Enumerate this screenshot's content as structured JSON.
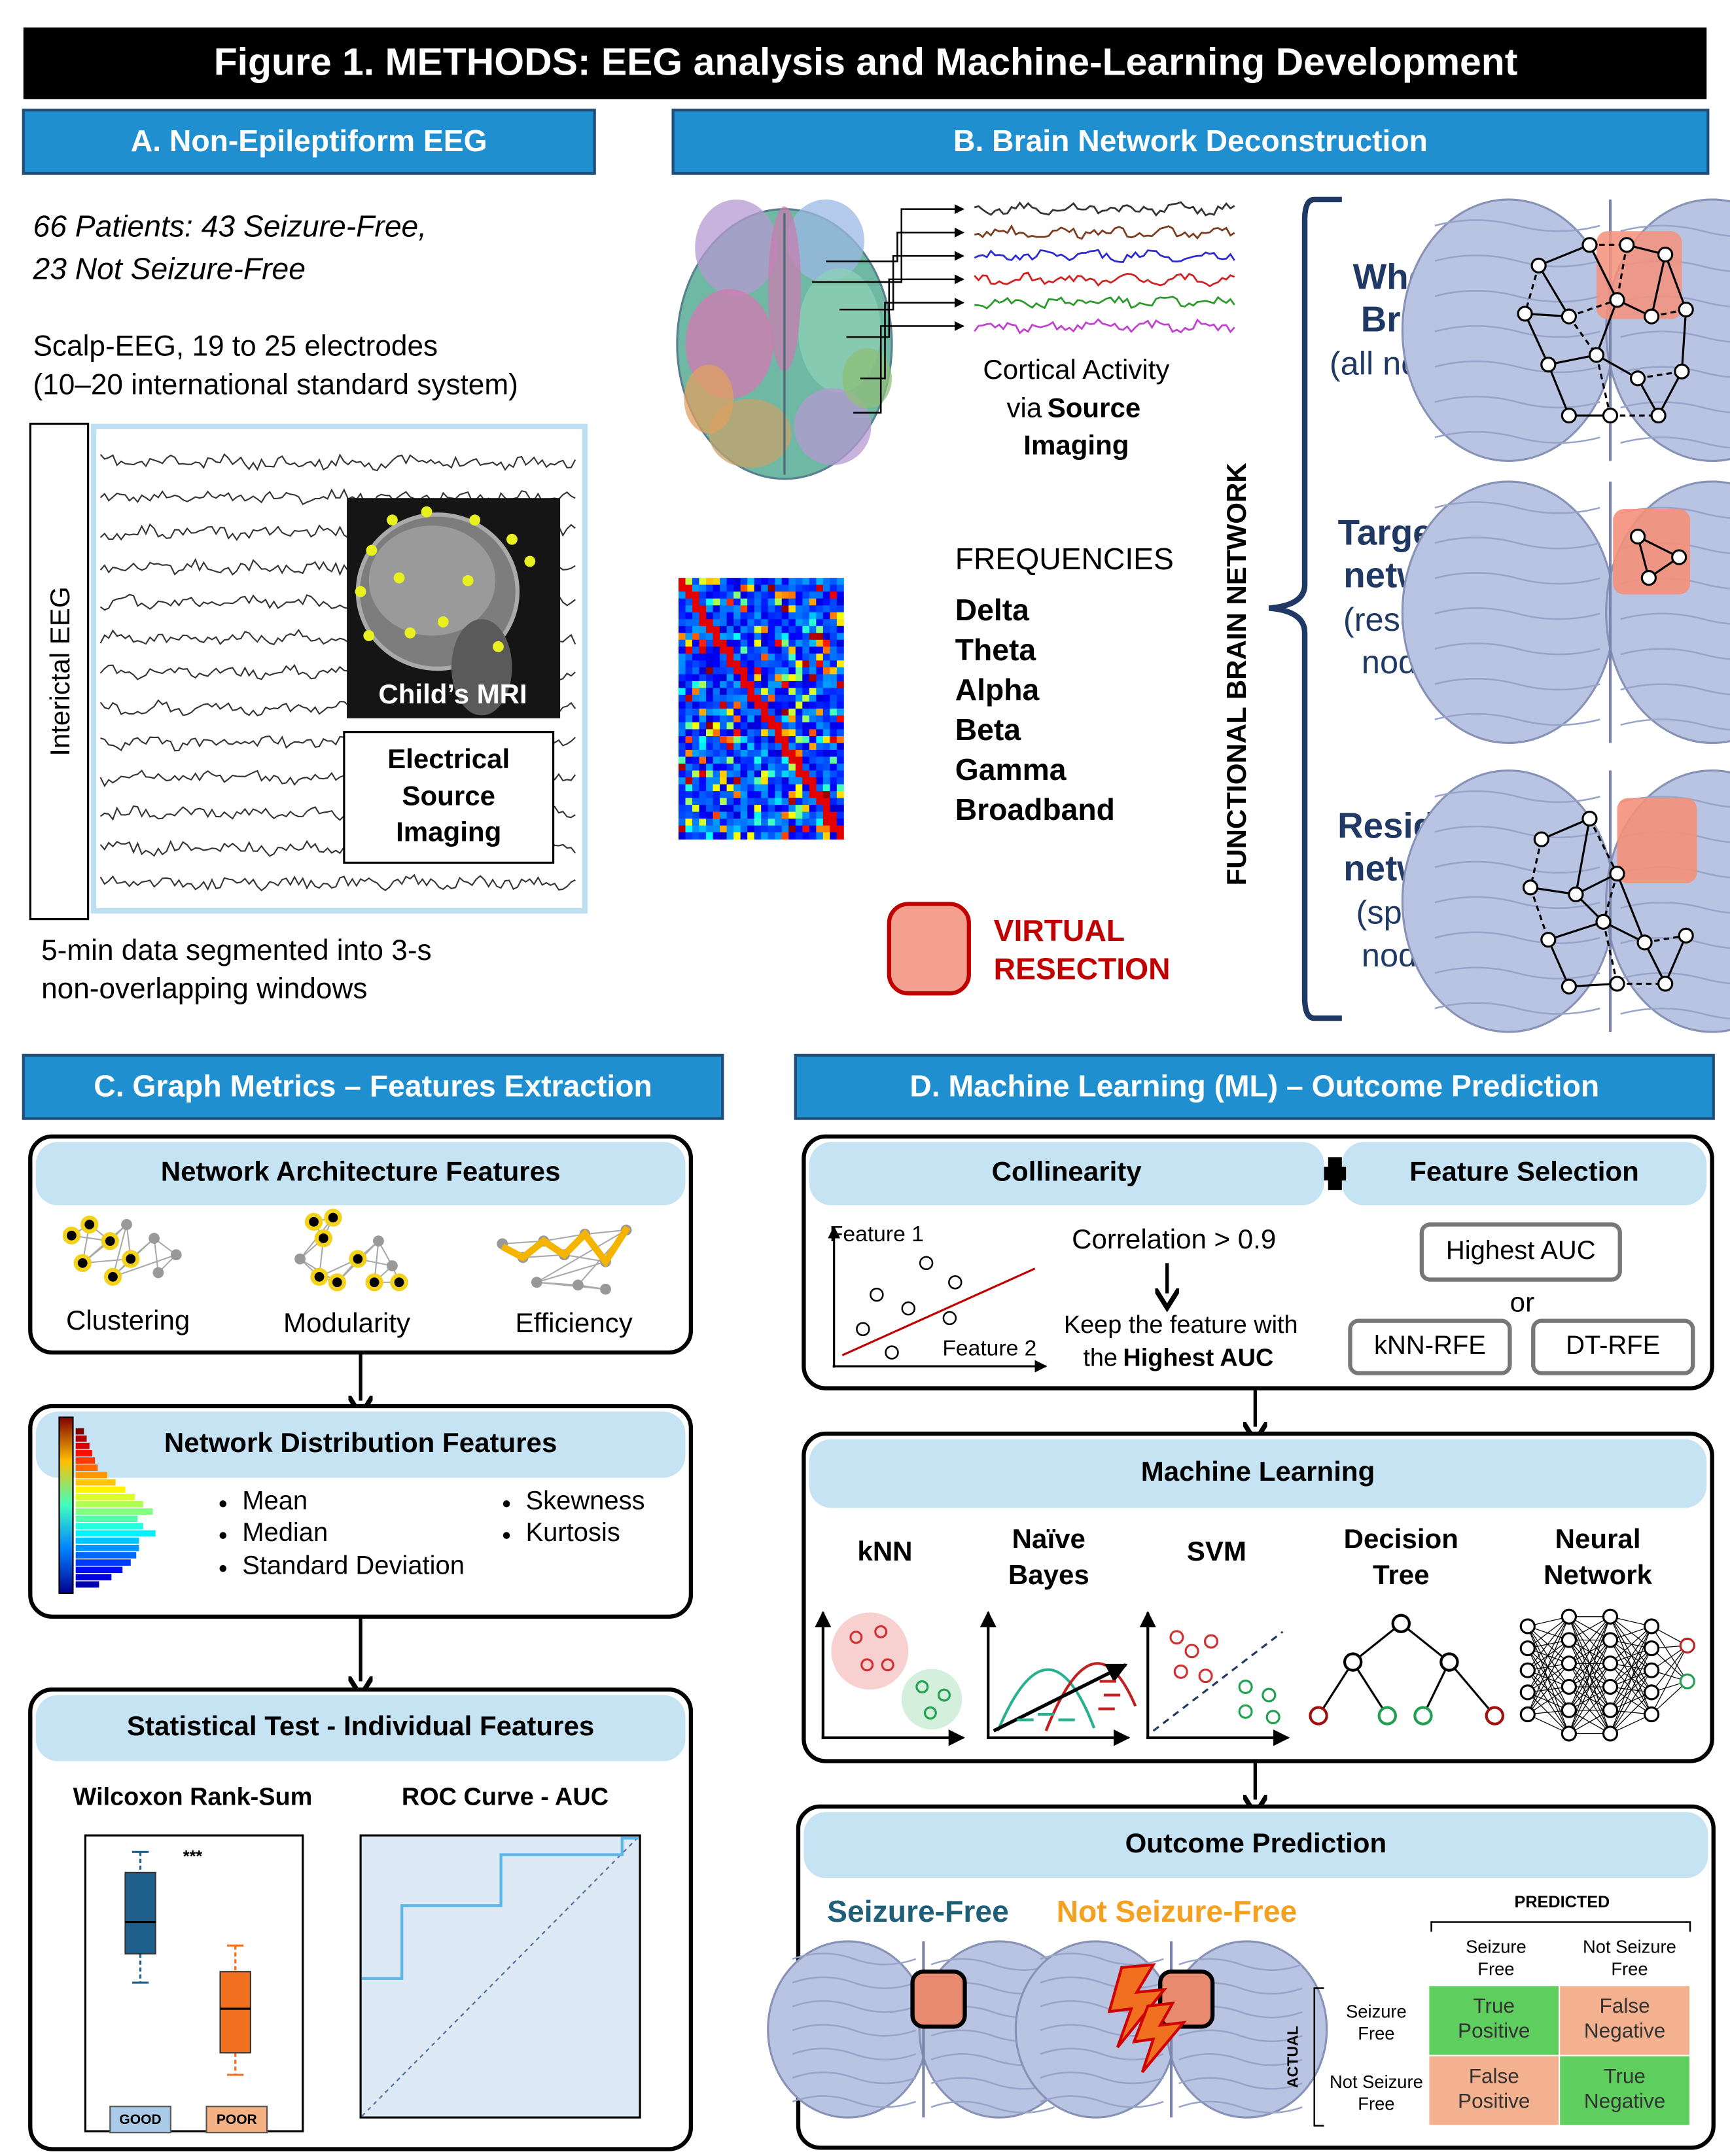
{
  "title": "Figure 1. METHODS: EEG analysis and Machine-Learning Development",
  "panel_a": {
    "heading": "A. Non-Epileptiform EEG",
    "patients": [
      "66 Patients: 43 Seizure-Free,",
      "23 Not Seizure-Free"
    ],
    "eeg": [
      "Scalp-EEG, 19 to 25 electrodes",
      "(10–20 international standard system)"
    ],
    "side_label": "Interictal EEG",
    "mri_label": "Child’s MRI",
    "esi": [
      "Electrical",
      "Source",
      "Imaging"
    ],
    "segments": [
      "5-min data segmented into 3-s",
      "non-overlapping windows"
    ]
  },
  "panel_b": {
    "heading": "B. Brain Network Deconstruction",
    "cortical": {
      "line1": "Cortical Activity",
      "via": "via",
      "source": "Source",
      "line3": "Imaging"
    },
    "frequencies_heading": "FREQUENCIES",
    "frequencies": [
      "Delta",
      "Theta",
      "Alpha",
      "Beta",
      "Gamma",
      "Broadband"
    ],
    "virtual_resection": [
      "VIRTUAL",
      "RESECTION"
    ],
    "vertical_label": "FUNCTIONAL BRAIN NETWORK",
    "networks": [
      {
        "name": [
          "Whole",
          "Brain"
        ],
        "desc": [
          "(all nodes)"
        ]
      },
      {
        "name": [
          "Targeted",
          "network"
        ],
        "desc": [
          "(resected",
          "nodes)"
        ]
      },
      {
        "name": [
          "Residual",
          "network"
        ],
        "desc": [
          "(spared",
          "nodes)"
        ]
      }
    ]
  },
  "panel_c": {
    "heading": "C. Graph Metrics – Features Extraction",
    "architecture": {
      "title": "Network Architecture Features",
      "items": [
        "Clustering",
        "Modularity",
        "Efficiency"
      ]
    },
    "distribution": {
      "title": "Network Distribution Features",
      "left": [
        "Mean",
        "Median",
        "Standard Deviation"
      ],
      "right": [
        "Skewness",
        "Kurtosis"
      ]
    },
    "statistical": {
      "title": "Statistical Test - Individual Features",
      "wilcoxon": "Wilcoxon Rank-Sum",
      "roc": "ROC Curve - AUC",
      "significance": "***",
      "groups": [
        "GOOD",
        "POOR"
      ]
    }
  },
  "panel_d": {
    "heading": "D. Machine Learning (ML) – Outcome Prediction",
    "collinearity": "Collinearity",
    "feature_selection": "Feature Selection",
    "axes": [
      "Feature 1",
      "Feature 2"
    ],
    "correlation": "Correlation > 0.9",
    "keep": {
      "line1": "Keep the feature with",
      "the": "the",
      "bold": "Highest AUC"
    },
    "selection": {
      "top": "Highest AUC",
      "or": "or",
      "left": "kNN-RFE",
      "right": "DT-RFE"
    },
    "ml_title": "Machine Learning",
    "models": [
      [
        "kNN"
      ],
      [
        "Naïve",
        "Bayes"
      ],
      [
        "SVM"
      ],
      [
        "Decision",
        "Tree"
      ],
      [
        "Neural",
        "Network"
      ]
    ],
    "outcome_title": "Outcome Prediction",
    "classes": [
      "Seizure-Free",
      "Not Seizure-Free"
    ],
    "matrix": {
      "predicted": "PREDICTED",
      "actual": "ACTUAL",
      "columns": [
        [
          "Seizure",
          "Free"
        ],
        [
          "Not Seizure",
          "Free"
        ]
      ],
      "rows": [
        [
          "Seizure",
          "Free"
        ],
        [
          "Not Seizure",
          "Free"
        ]
      ],
      "cells": [
        [
          [
            "True",
            "Positive"
          ],
          [
            "False",
            "Negative"
          ]
        ],
        [
          [
            "False",
            "Positive"
          ],
          [
            "True",
            "Negative"
          ]
        ]
      ]
    }
  }
}
